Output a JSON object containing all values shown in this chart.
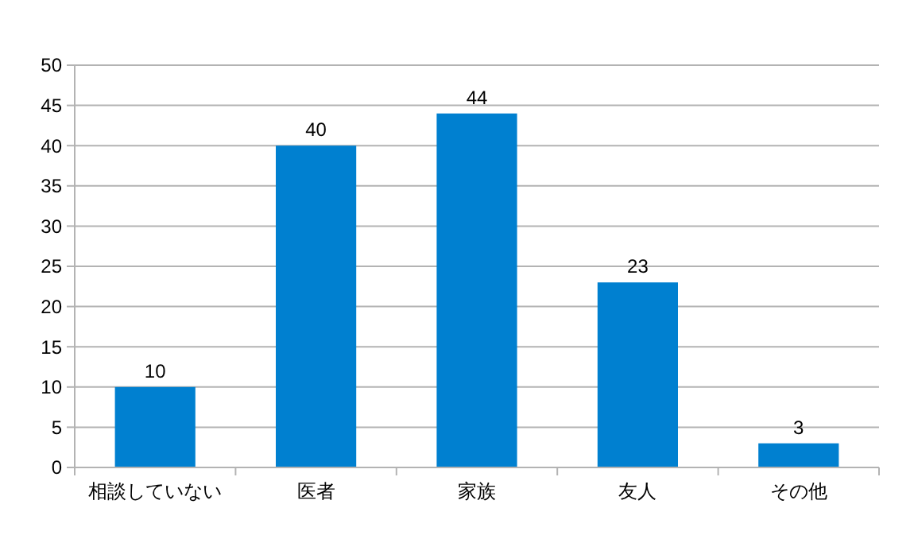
{
  "chart_data": {
    "type": "bar",
    "categories": [
      "相談していない",
      "医者",
      "家族",
      "友人",
      "その他"
    ],
    "values": [
      10,
      40,
      44,
      23,
      3
    ],
    "color": "#0080d0",
    "ylim": [
      0,
      50
    ],
    "yticks": [
      0,
      5,
      10,
      15,
      20,
      25,
      30,
      35,
      40,
      45,
      50
    ],
    "grid": "y",
    "data_labels": true
  }
}
